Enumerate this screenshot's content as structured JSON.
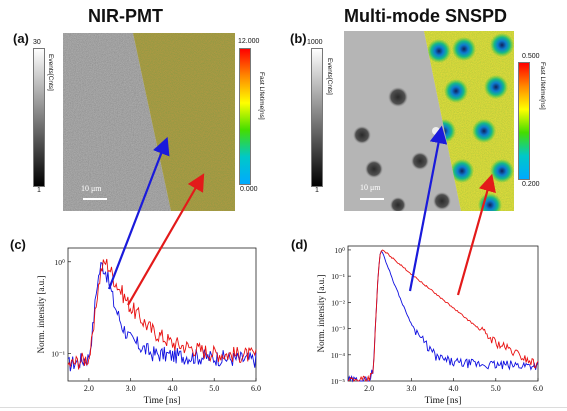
{
  "panels": {
    "a": {
      "letter": "(a)",
      "title": "NIR-PMT",
      "gray_bar": {
        "top": "30",
        "bottom": "1",
        "label": "Events[Cnts]"
      },
      "color_bar": {
        "top": "12.000",
        "bottom": "0.000",
        "label": "Fast Lifetime[ns]"
      },
      "scale": "10 μm"
    },
    "b": {
      "letter": "(b)",
      "title": "Multi-mode SNSPD",
      "gray_bar": {
        "top": "1000",
        "bottom": "1",
        "label": "Events[Cnts]"
      },
      "color_bar": {
        "top": "0.500",
        "bottom": "0.200",
        "label": "Fast Lifetime[ns]"
      },
      "scale": "10 μm"
    },
    "c": {
      "letter": "(c)"
    },
    "d": {
      "letter": "(d)"
    }
  },
  "colors": {
    "blue_curve": "#1010e0",
    "red_curve": "#e81010",
    "arrow_blue": "#1a1adb",
    "arrow_red": "#e31a1a"
  },
  "chart_data": [
    {
      "id": "c",
      "type": "line",
      "xlabel": "Time [ns]",
      "ylabel": "Norm. intensity [a.u.]",
      "xlim": [
        1.5,
        6.0
      ],
      "ylim_log10": [
        -1.3,
        0.15
      ],
      "yscale": "log",
      "xticks": [
        "2.0",
        "3.0",
        "4.0",
        "5.0",
        "6.0"
      ],
      "yticks": [
        "10⁰",
        "10⁻¹"
      ],
      "series": [
        {
          "color": "blue",
          "x": [
            1.5,
            2.0,
            2.1,
            2.2,
            2.3,
            2.4,
            2.5,
            2.6,
            2.8,
            3.0,
            3.5,
            4.0,
            5.0,
            6.0
          ],
          "y": [
            0.075,
            0.09,
            0.2,
            0.6,
            0.95,
            0.8,
            0.55,
            0.35,
            0.2,
            0.14,
            0.1,
            0.095,
            0.09,
            0.085
          ]
        },
        {
          "color": "red",
          "x": [
            1.5,
            2.0,
            2.1,
            2.2,
            2.3,
            2.4,
            2.5,
            2.6,
            2.8,
            3.0,
            3.5,
            4.0,
            5.0,
            6.0
          ],
          "y": [
            0.075,
            0.09,
            0.15,
            0.45,
            0.85,
            1.0,
            0.85,
            0.65,
            0.45,
            0.32,
            0.18,
            0.13,
            0.1,
            0.095
          ]
        }
      ]
    },
    {
      "id": "d",
      "type": "line",
      "xlabel": "Time [ns]",
      "ylabel": "Norm. intensity [a.u.]",
      "xlim": [
        1.5,
        6.0
      ],
      "ylim_log10": [
        -5,
        0.15
      ],
      "yscale": "log",
      "xticks": [
        "2.0",
        "3.0",
        "4.0",
        "5.0",
        "6.0"
      ],
      "yticks": [
        "10⁰",
        "10⁻¹",
        "10⁻²",
        "10⁻³",
        "10⁻⁴",
        "10⁻⁵"
      ],
      "series": [
        {
          "color": "blue",
          "x": [
            1.5,
            2.0,
            2.1,
            2.15,
            2.2,
            2.25,
            2.3,
            2.4,
            2.6,
            2.8,
            3.0,
            3.3,
            3.6,
            4.0,
            5.0,
            6.0
          ],
          "y": [
            1e-05,
            1e-05,
            3e-05,
            0.001,
            0.05,
            0.6,
            1.0,
            0.35,
            0.05,
            0.008,
            0.0015,
            0.0003,
            8e-05,
            5e-05,
            4e-05,
            4e-05
          ]
        },
        {
          "color": "red",
          "x": [
            1.5,
            2.0,
            2.1,
            2.15,
            2.2,
            2.25,
            2.3,
            2.4,
            3.0,
            4.0,
            5.0,
            6.0
          ],
          "y": [
            1e-05,
            1e-05,
            3e-05,
            0.001,
            0.05,
            0.6,
            1.0,
            0.8,
            0.12,
            0.006,
            0.0003,
            4e-05
          ]
        }
      ]
    }
  ]
}
